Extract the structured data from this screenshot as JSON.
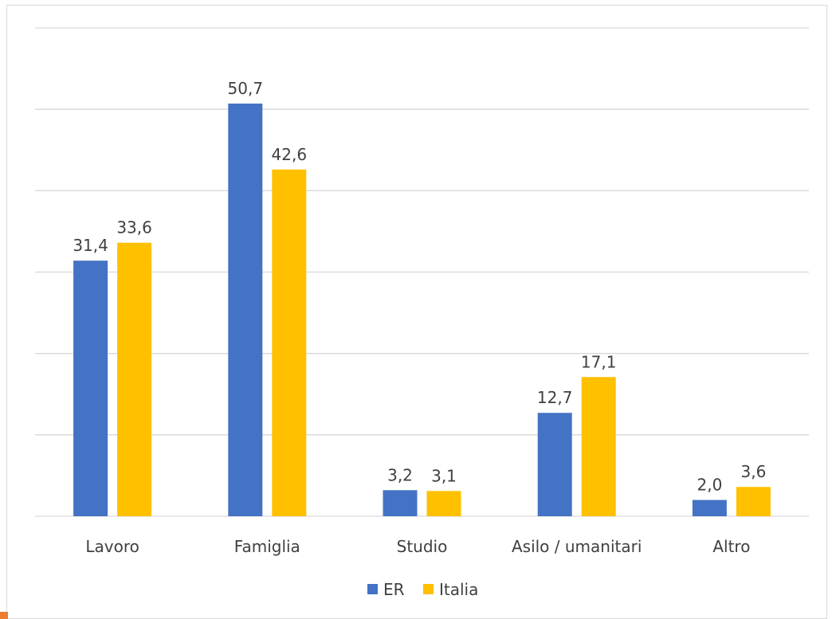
{
  "chart_data": {
    "type": "bar",
    "title": "",
    "xlabel": "",
    "ylabel": "",
    "categories": [
      "Lavoro",
      "Famiglia",
      "Studio",
      "Asilo / umanitari",
      "Altro"
    ],
    "series": [
      {
        "name": "ER",
        "color": "#4472c4",
        "values": [
          31.4,
          50.7,
          3.2,
          12.7,
          2.0
        ],
        "labels": [
          "31,4",
          "50,7",
          "3,2",
          "12,7",
          "2,0"
        ]
      },
      {
        "name": "Italia",
        "color": "#ffc000",
        "values": [
          33.6,
          42.6,
          3.1,
          17.1,
          3.6
        ],
        "labels": [
          "33,6",
          "42,6",
          "3,1",
          "17,1",
          "3,6"
        ]
      }
    ],
    "ylim": [
      0,
      60
    ],
    "grid": true,
    "y_tick_labels_shown": false,
    "legend_position": "bottom"
  }
}
